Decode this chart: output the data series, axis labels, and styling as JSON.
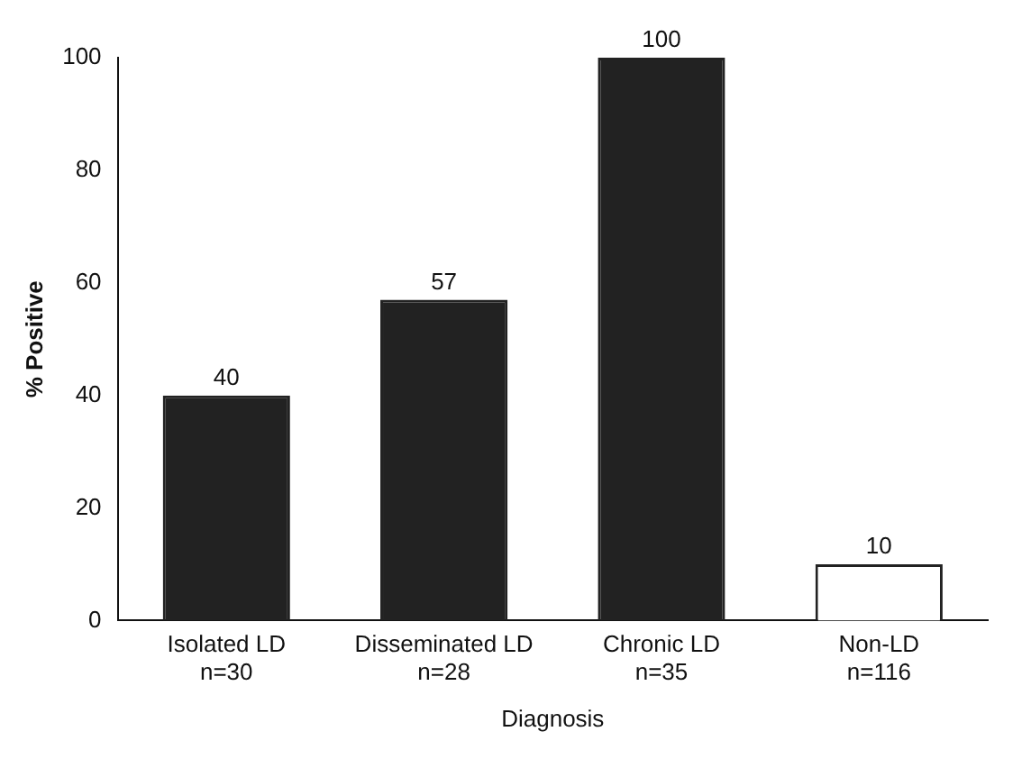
{
  "chart_data": {
    "type": "bar",
    "xlabel": "Diagnosis",
    "ylabel": "% Positive",
    "categories": [
      "Isolated LD\nn=30",
      "Disseminated LD\nn=28",
      "Chronic LD\nn=35",
      "Non-LD\nn=116"
    ],
    "values": [
      40,
      57,
      100,
      10
    ],
    "colors": [
      "#222222",
      "#222222",
      "#222222",
      "#ffffff"
    ],
    "ylim": [
      0,
      100
    ],
    "yticks": [
      0,
      20,
      40,
      60,
      80,
      100
    ],
    "grid": false,
    "legend": false,
    "data_labels": true
  }
}
